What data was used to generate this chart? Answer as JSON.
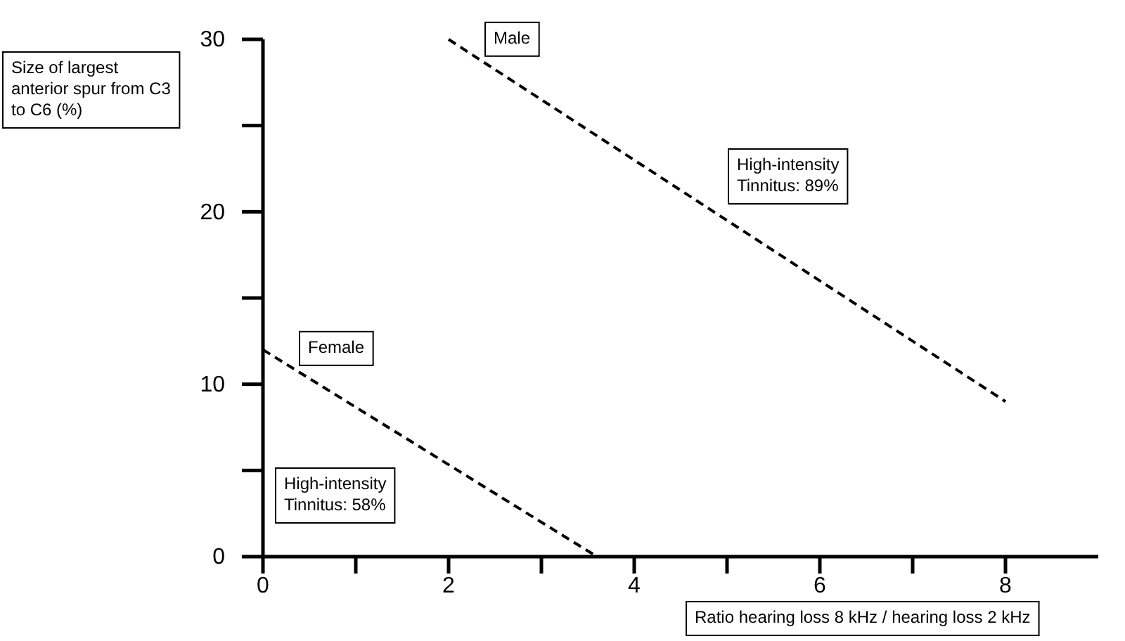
{
  "chart_data": {
    "type": "line",
    "xlabel": "Ratio hearing loss 8 kHz / hearing loss 2 kHz",
    "ylabel": "Size of largest anterior spur from C3 to C6 (%)",
    "xlim": [
      0,
      9
    ],
    "ylim": [
      0,
      30
    ],
    "xticks": [
      0,
      {
        "value": 1,
        "label": null
      },
      2,
      {
        "value": 3,
        "label": null
      },
      4,
      {
        "value": 5,
        "label": null
      },
      6,
      {
        "value": 7,
        "label": null
      },
      8
    ],
    "yticks": [
      0,
      {
        "value": 5,
        "label": null
      },
      10,
      {
        "value": 15,
        "label": null
      },
      20,
      {
        "value": 25,
        "label": null
      },
      30
    ],
    "line_style": "dashed",
    "marker": "none",
    "grid": false,
    "series": [
      {
        "name": "Male",
        "color": "#000000",
        "x": [
          2,
          8
        ],
        "values": [
          30,
          9
        ]
      },
      {
        "name": "Female",
        "color": "#000000",
        "x": [
          0,
          3.6
        ],
        "values": [
          12,
          0
        ]
      }
    ],
    "annotations": [
      "High-intensity Tinnitus: 89%",
      "High-intensity Tinnitus: 58%"
    ]
  }
}
